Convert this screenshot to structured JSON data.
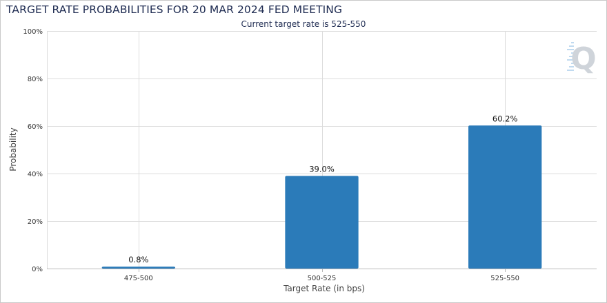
{
  "chart_data": {
    "type": "bar",
    "title": "TARGET RATE PROBABILITIES FOR 20 MAR 2024 FED MEETING",
    "subtitle": "Current target rate is 525-550",
    "xlabel": "Target Rate (in bps)",
    "ylabel": "Probability",
    "categories": [
      "475-500",
      "500-525",
      "525-550"
    ],
    "values": [
      0.8,
      39.0,
      60.2
    ],
    "value_labels": [
      "0.8%",
      "39.0%",
      "60.2%"
    ],
    "y_ticks": [
      "0%",
      "20%",
      "40%",
      "60%",
      "80%",
      "100%"
    ],
    "y_tick_values": [
      0,
      20,
      40,
      60,
      80,
      100
    ],
    "ylim": [
      0,
      100
    ],
    "grid": true,
    "bar_color": "#2b7bb9",
    "grid_color": "#dcdcdc",
    "legend": "none"
  },
  "logo": {
    "letter": "Q",
    "color": "#cfd4da",
    "accent_color": "#7fb4e0"
  }
}
